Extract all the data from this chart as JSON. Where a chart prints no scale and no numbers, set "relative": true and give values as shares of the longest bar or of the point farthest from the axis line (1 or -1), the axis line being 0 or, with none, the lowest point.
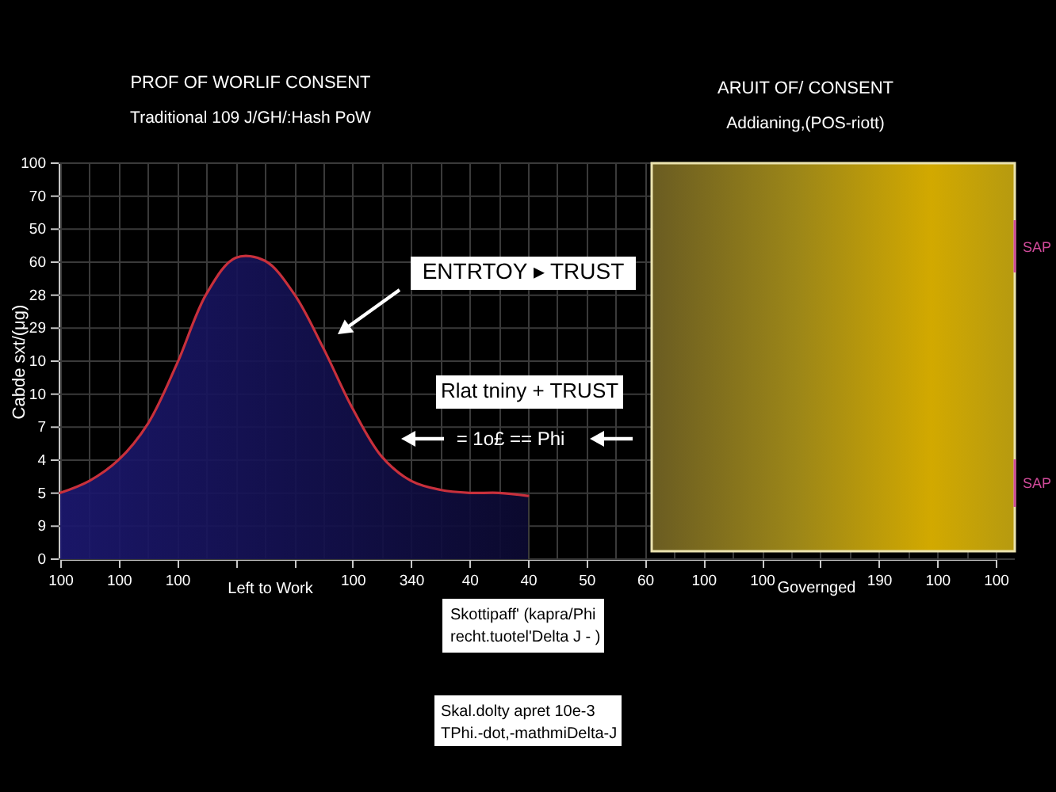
{
  "chart_data": {
    "type": "area",
    "title": "PROF OF WORLIF CONSENT",
    "subtitle": "Traditional 109 J/GH/:Hash PoW",
    "xlabel": "Left to Work",
    "ylabel": "Cabde sxt/(μg)",
    "relative": true,
    "categories": [
      "100",
      null,
      "100",
      null,
      "100",
      null,
      null,
      null,
      null,
      null,
      "100",
      null,
      "340",
      null,
      "40",
      null,
      "40",
      null,
      "50",
      null,
      "60",
      null,
      "100",
      null,
      "100",
      null,
      null,
      null,
      "190",
      null,
      "100",
      null,
      "100"
    ],
    "series": [
      {
        "color": "#1c1870",
        "values": [
          0.22,
          0.26,
          0.33,
          0.45,
          0.65,
          0.88,
          1.0,
          0.99,
          0.88,
          0.7,
          0.5,
          0.34,
          0.26,
          0.23,
          0.22,
          0.22,
          0.21,
          null,
          null,
          null,
          null,
          null,
          null,
          null,
          null,
          null,
          null,
          null,
          null,
          null,
          null,
          null,
          null
        ]
      }
    ],
    "grid": true,
    "annotations": [
      "100",
      "70",
      "50",
      "60",
      "28",
      "29",
      "10",
      "10",
      "7",
      "4",
      "5",
      "9",
      "0",
      "ENTRTOY ▸ TRUST",
      "Rlat tniny + TRUST",
      "= 1o£ == Phi",
      "ARUIT OF/ CONSENT",
      "Addianing,(POS-riott)",
      "Governged",
      "SAP",
      "SAP",
      "Skottipaff' (kapra/Phi\nrecht.tuotel'Delta J - )",
      "Skal.dolty apret 10e-3\nTPhi.-dot,-mathmiDelta-J"
    ]
  }
}
